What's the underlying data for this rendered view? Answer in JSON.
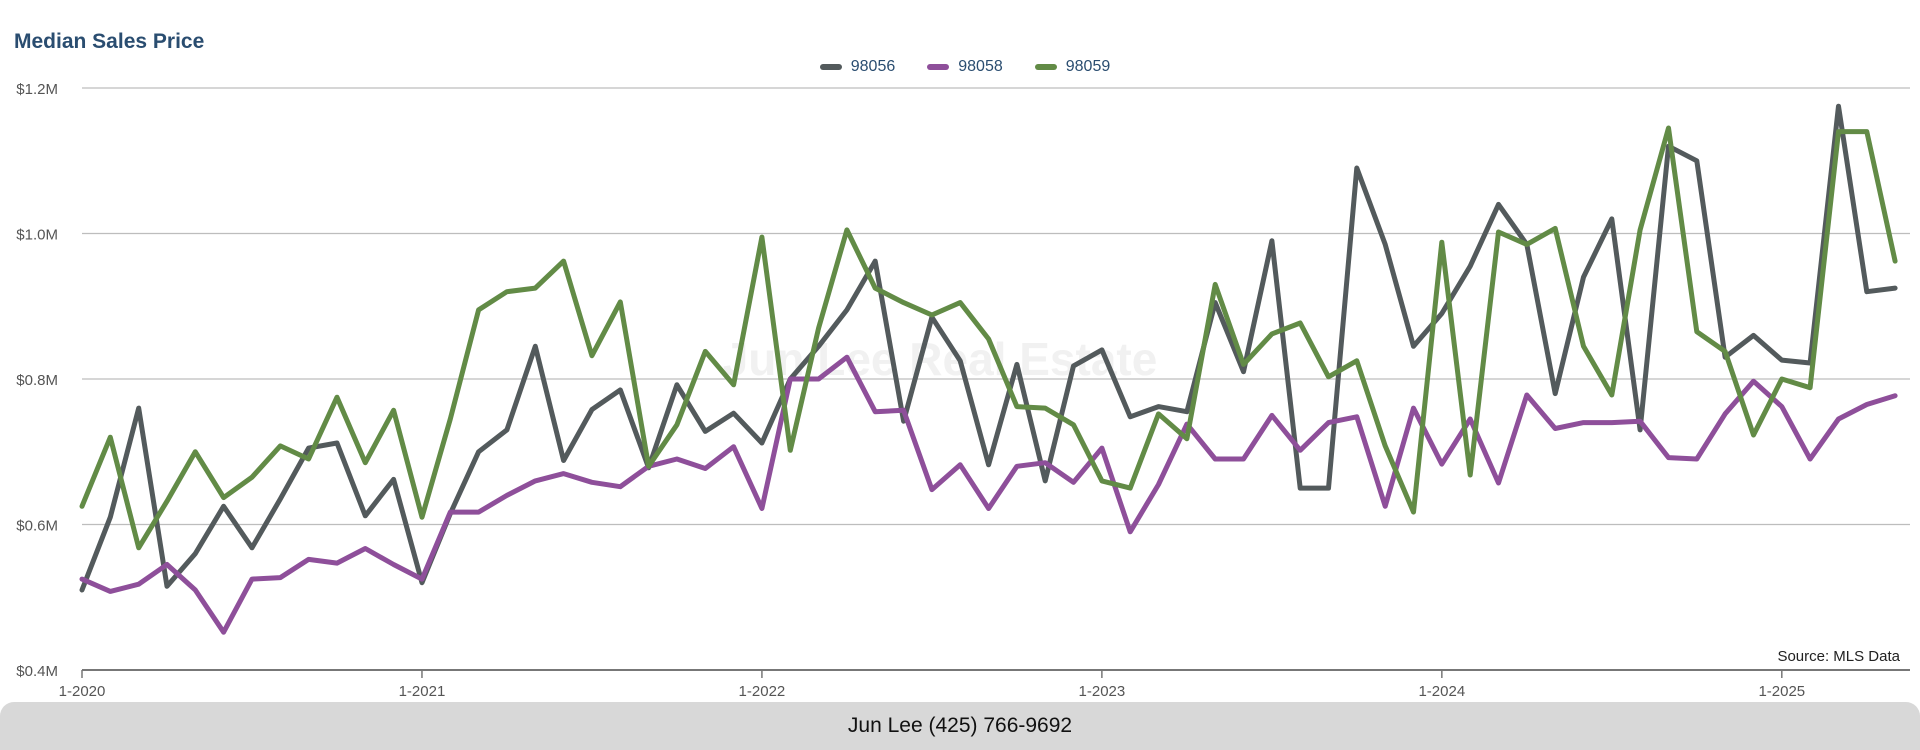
{
  "chart_data": {
    "type": "line",
    "title": "Median Sales Price",
    "source": "Source: MLS Data",
    "watermark": "Jun Lee Real Estate",
    "ylim": [
      400000,
      1200000
    ],
    "y_ticks": [
      {
        "value": 400000,
        "label": "$0.4M"
      },
      {
        "value": 600000,
        "label": "$0.6M"
      },
      {
        "value": 800000,
        "label": "$0.8M"
      },
      {
        "value": 1000000,
        "label": "$1.0M"
      },
      {
        "value": 1200000,
        "label": "$1.2M"
      }
    ],
    "x_ticks": [
      {
        "value": 0,
        "label": "1-2020"
      },
      {
        "value": 12,
        "label": "1-2021"
      },
      {
        "value": 24,
        "label": "1-2022"
      },
      {
        "value": 36,
        "label": "1-2023"
      },
      {
        "value": 48,
        "label": "1-2024"
      },
      {
        "value": 60,
        "label": "1-2025"
      }
    ],
    "grid": true,
    "legend_position": "top-center",
    "series": [
      {
        "name": "98056",
        "color": "#535a5c",
        "values": [
          510000,
          610000,
          760000,
          515000,
          560000,
          625000,
          568000,
          635000,
          705000,
          712000,
          612000,
          662000,
          520000,
          615000,
          700000,
          730000,
          845000,
          688000,
          758000,
          785000,
          678000,
          792000,
          728000,
          753000,
          712000,
          800000,
          845000,
          895000,
          962000,
          742000,
          885000,
          825000,
          682000,
          820000,
          660000,
          818000,
          840000,
          748000,
          762000,
          755000,
          905000,
          810000,
          990000,
          650000,
          650000,
          1090000,
          985000,
          845000,
          890000,
          955000,
          1040000,
          985000,
          780000,
          940000,
          1020000,
          730000,
          1120000,
          1100000,
          830000,
          860000,
          826000,
          822000,
          1175000,
          920000,
          925000
        ]
      },
      {
        "name": "98058",
        "color": "#8e4f9a",
        "values": [
          525000,
          508000,
          518000,
          545000,
          510000,
          452000,
          525000,
          527000,
          552000,
          547000,
          567000,
          545000,
          525000,
          617000,
          617000,
          640000,
          660000,
          670000,
          658000,
          652000,
          680000,
          690000,
          677000,
          707000,
          622000,
          800000,
          800000,
          830000,
          755000,
          757000,
          648000,
          682000,
          622000,
          680000,
          685000,
          658000,
          705000,
          590000,
          655000,
          738000,
          690000,
          690000,
          750000,
          702000,
          740000,
          748000,
          625000,
          760000,
          683000,
          745000,
          657000,
          778000,
          732000,
          740000,
          740000,
          742000,
          692000,
          690000,
          752000,
          797000,
          762000,
          690000,
          745000,
          765000,
          777000
        ]
      },
      {
        "name": "98059",
        "color": "#628b46",
        "values": [
          625000,
          720000,
          568000,
          632000,
          700000,
          637000,
          665000,
          708000,
          690000,
          775000,
          685000,
          757000,
          610000,
          745000,
          895000,
          920000,
          925000,
          962000,
          832000,
          906000,
          680000,
          737000,
          838000,
          792000,
          995000,
          702000,
          870000,
          1005000,
          925000,
          905000,
          888000,
          905000,
          855000,
          762000,
          760000,
          737000,
          660000,
          650000,
          752000,
          718000,
          930000,
          820000,
          862000,
          877000,
          803000,
          825000,
          708000,
          617000,
          988000,
          668000,
          1002000,
          985000,
          1007000,
          845000,
          778000,
          1005000,
          1145000,
          865000,
          838000,
          723000,
          800000,
          788000,
          1140000,
          1140000,
          962000
        ]
      }
    ]
  },
  "footer": {
    "text": "Jun Lee (425) 766-9692"
  }
}
